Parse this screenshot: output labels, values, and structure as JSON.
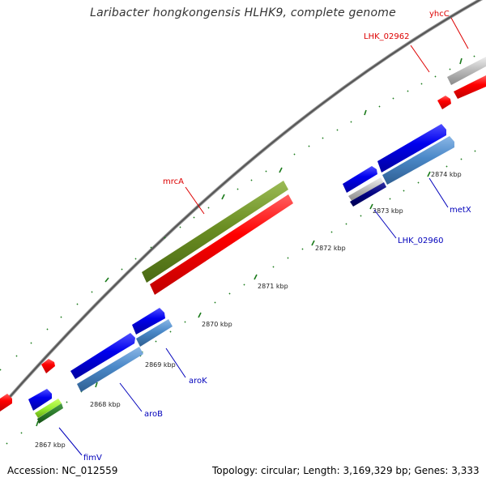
{
  "title": "Laribacter hongkongensis HLHK9, complete genome",
  "footer": {
    "accession": "Accession: NC_012559",
    "summary": "Topology: circular; Length: 3,169,329 bp; Genes: 3,333"
  },
  "tick_labels": [
    "2867 kbp",
    "2868 kbp",
    "2869 kbp",
    "2870 kbp",
    "2871 kbp",
    "2872 kbp",
    "2873 kbp",
    "2874 kbp"
  ],
  "gene_labels": [
    "yhcC",
    "LHK_02962",
    "mrcA",
    "metX",
    "LHK_02960",
    "aroK",
    "aroB",
    "fimV"
  ],
  "colors": {
    "backbone": "#666666",
    "tick": "#1a7a1a",
    "red": "#ff0000",
    "blue": "#0000ee",
    "steel_blue": "#4a88c8",
    "olive": "#6b8e23",
    "gray": "#b8b8b8",
    "navy": "#000080",
    "lime": "#99ee33",
    "dark_green": "#2a7a2a"
  }
}
